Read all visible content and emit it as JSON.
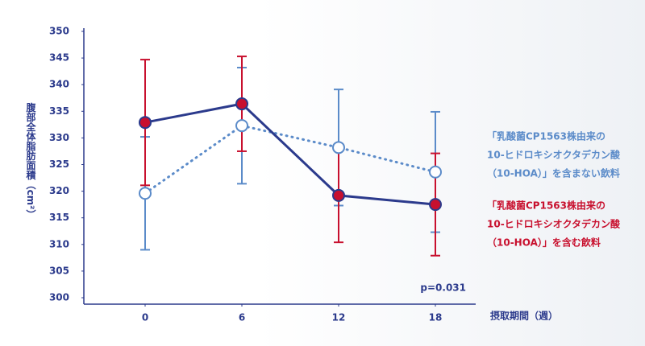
{
  "chart_data": {
    "type": "line",
    "x": [
      0,
      6,
      12,
      18
    ],
    "xticks": [
      0,
      6,
      12,
      18
    ],
    "xlim": [
      -3.8,
      20.5
    ],
    "ylim": [
      300,
      350
    ],
    "yticks": [
      300,
      305,
      310,
      315,
      320,
      325,
      330,
      335,
      340,
      345,
      350
    ],
    "y_label": "腹部全体脂肪面積（cm²）",
    "x_label": "摂取期間（週）",
    "annotation": "p=0.031",
    "series": [
      {
        "name_lines": [
          "「乳酸菌CP1563株由来の",
          "10-ヒドロキシオクタデカン酸",
          "（10-HOA）」を含まない飲料"
        ],
        "color": "#5b8bc9",
        "line_style": "dotted",
        "marker_fill": "#ffffff",
        "values": [
          319.6,
          332.3,
          328.2,
          323.6
        ],
        "errors": [
          10.6,
          10.9,
          10.9,
          11.3
        ]
      },
      {
        "name_lines": [
          "「乳酸菌CP1563株由来の",
          "10-ヒドロキシオクタデカン酸",
          "（10-HOA）」を含む飲料"
        ],
        "color": "#c8102e",
        "line_color": "#2b3a8c",
        "line_style": "solid",
        "marker_fill": "#c8102e",
        "values": [
          332.9,
          336.4,
          319.2,
          317.5
        ],
        "errors": [
          11.8,
          8.9,
          8.8,
          9.6
        ]
      }
    ]
  }
}
